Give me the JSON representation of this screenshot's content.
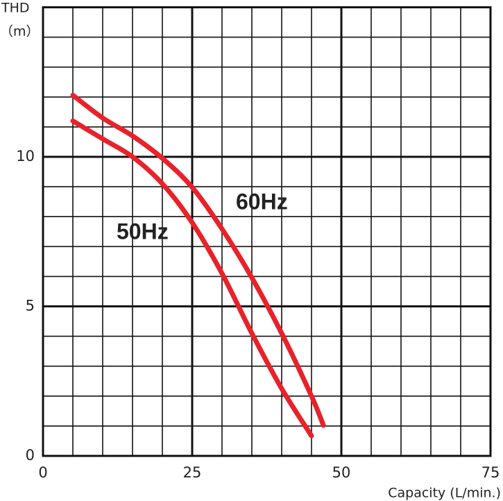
{
  "chart_data": {
    "type": "line",
    "y_axis_label": "THD",
    "y_axis_unit": "（m）",
    "x_axis_label": "Capacity (L/min.)",
    "xlim": [
      0,
      75
    ],
    "ylim": [
      0,
      15
    ],
    "xticks": [
      0,
      25,
      50,
      75
    ],
    "yticks": [
      0,
      5,
      10
    ],
    "x_grid": [
      5,
      10,
      15,
      20,
      30,
      35,
      40,
      45,
      55,
      60,
      65,
      70
    ],
    "y_grid": [
      1,
      2,
      3,
      4,
      6,
      7,
      8,
      9,
      11,
      12,
      13,
      14,
      15
    ],
    "grid": true,
    "series": [
      {
        "name": "60Hz",
        "color": "#e8222a",
        "x": [
          5,
          10,
          15,
          20,
          25,
          30,
          35,
          40,
          45,
          47
        ],
        "values": [
          12.06,
          11.3,
          10.7,
          9.95,
          8.98,
          7.59,
          5.96,
          4.1,
          2.0,
          1.02
        ]
      },
      {
        "name": "50Hz",
        "color": "#e8222a",
        "x": [
          5,
          10,
          15,
          20,
          25,
          30,
          35,
          40,
          45
        ],
        "values": [
          11.2,
          10.6,
          10.0,
          9.1,
          7.8,
          6.1,
          4.1,
          2.25,
          0.67
        ]
      }
    ]
  }
}
